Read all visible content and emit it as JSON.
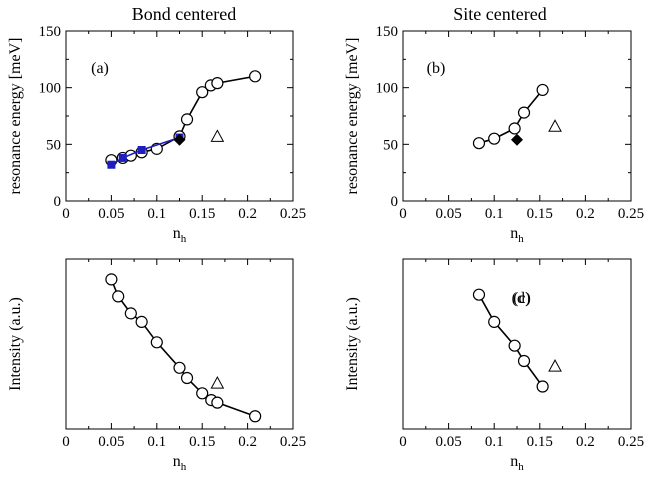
{
  "column_titles": [
    "Bond centered",
    "Site centered"
  ],
  "chart_data": [
    {
      "type": "line",
      "panel_label": "(a)",
      "xlabel": "n",
      "xlabel_sub": "h",
      "ylabel": "resonance energy [meV]",
      "xlim": [
        0,
        0.25
      ],
      "ylim": [
        0,
        150
      ],
      "x_ticks": [
        "0",
        "0.05",
        "0.1",
        "0.15",
        "0.2",
        "0.25"
      ],
      "y_ticks": [
        "0",
        "50",
        "100",
        "150"
      ],
      "series": [
        {
          "marker": "circle-open",
          "color": "#000000",
          "line": true,
          "points": [
            [
              0.05,
              36
            ],
            [
              0.0625,
              38
            ],
            [
              0.0714,
              40
            ],
            [
              0.0833,
              43
            ],
            [
              0.1,
              46
            ],
            [
              0.125,
              57
            ],
            [
              0.1333,
              72
            ],
            [
              0.15,
              96
            ],
            [
              0.1595,
              102
            ],
            [
              0.1667,
              104
            ],
            [
              0.2083,
              110
            ]
          ]
        },
        {
          "marker": "square-filled",
          "color": "#1f1fbf",
          "line": true,
          "points": [
            [
              0.05,
              32
            ],
            [
              0.0625,
              38
            ],
            [
              0.0833,
              45
            ],
            [
              0.125,
              56
            ]
          ]
        },
        {
          "marker": "diamond-filled",
          "color": "#000000",
          "line": false,
          "points": [
            [
              0.125,
              54
            ]
          ]
        },
        {
          "marker": "triangle-open",
          "color": "#000000",
          "line": false,
          "points": [
            [
              0.1667,
              57
            ]
          ]
        }
      ]
    },
    {
      "type": "line",
      "panel_label": "(b)",
      "xlabel": "n",
      "xlabel_sub": "h",
      "ylabel": "resonance energy [meV]",
      "xlim": [
        0,
        0.25
      ],
      "ylim": [
        0,
        150
      ],
      "x_ticks": [
        "0",
        "0.05",
        "0.1",
        "0.15",
        "0.2",
        "0.25"
      ],
      "y_ticks": [
        "0",
        "50",
        "100",
        "150"
      ],
      "series": [
        {
          "marker": "circle-open",
          "color": "#000000",
          "line": true,
          "points": [
            [
              0.0833,
              51
            ],
            [
              0.1,
              55
            ],
            [
              0.1224,
              64
            ],
            [
              0.1327,
              78
            ],
            [
              0.1531,
              98
            ]
          ]
        },
        {
          "marker": "diamond-filled",
          "color": "#000000",
          "line": false,
          "points": [
            [
              0.125,
              54
            ]
          ]
        },
        {
          "marker": "triangle-open",
          "color": "#000000",
          "line": false,
          "points": [
            [
              0.1667,
              66
            ]
          ]
        }
      ]
    },
    {
      "type": "line",
      "panel_label": "(c)",
      "xlabel": "n",
      "xlabel_sub": "h",
      "ylabel": "Intensity (a.u.)",
      "xlim": [
        0,
        0.25
      ],
      "ylim": [
        0,
        1
      ],
      "x_ticks": [
        "0",
        "0.05",
        "0.1",
        "0.15",
        "0.2",
        "0.25"
      ],
      "y_ticks": [],
      "series": [
        {
          "marker": "circle-open",
          "color": "#000000",
          "line": true,
          "points": [
            [
              0.05,
              0.88
            ],
            [
              0.0575,
              0.78
            ],
            [
              0.0714,
              0.68
            ],
            [
              0.0833,
              0.63
            ],
            [
              0.1,
              0.51
            ],
            [
              0.125,
              0.36
            ],
            [
              0.1333,
              0.3
            ],
            [
              0.15,
              0.21
            ],
            [
              0.16,
              0.17
            ],
            [
              0.1667,
              0.155
            ],
            [
              0.2083,
              0.075
            ]
          ]
        },
        {
          "marker": "triangle-open",
          "color": "#000000",
          "line": false,
          "points": [
            [
              0.1667,
              0.27
            ]
          ]
        }
      ]
    },
    {
      "type": "line",
      "panel_label": "(d)",
      "xlabel": "n",
      "xlabel_sub": "h",
      "ylabel": "Intensity (a.u.)",
      "xlim": [
        0,
        0.25
      ],
      "ylim": [
        0,
        1
      ],
      "x_ticks": [
        "0",
        "0.05",
        "0.1",
        "0.15",
        "0.2",
        "0.25"
      ],
      "y_ticks": [],
      "series": [
        {
          "marker": "circle-open",
          "color": "#000000",
          "line": true,
          "points": [
            [
              0.0833,
              0.79
            ],
            [
              0.1,
              0.63
            ],
            [
              0.1224,
              0.49
            ],
            [
              0.1327,
              0.4
            ],
            [
              0.1531,
              0.25
            ]
          ]
        },
        {
          "marker": "triangle-open",
          "color": "#000000",
          "line": false,
          "points": [
            [
              0.1667,
              0.37
            ]
          ]
        }
      ]
    }
  ]
}
